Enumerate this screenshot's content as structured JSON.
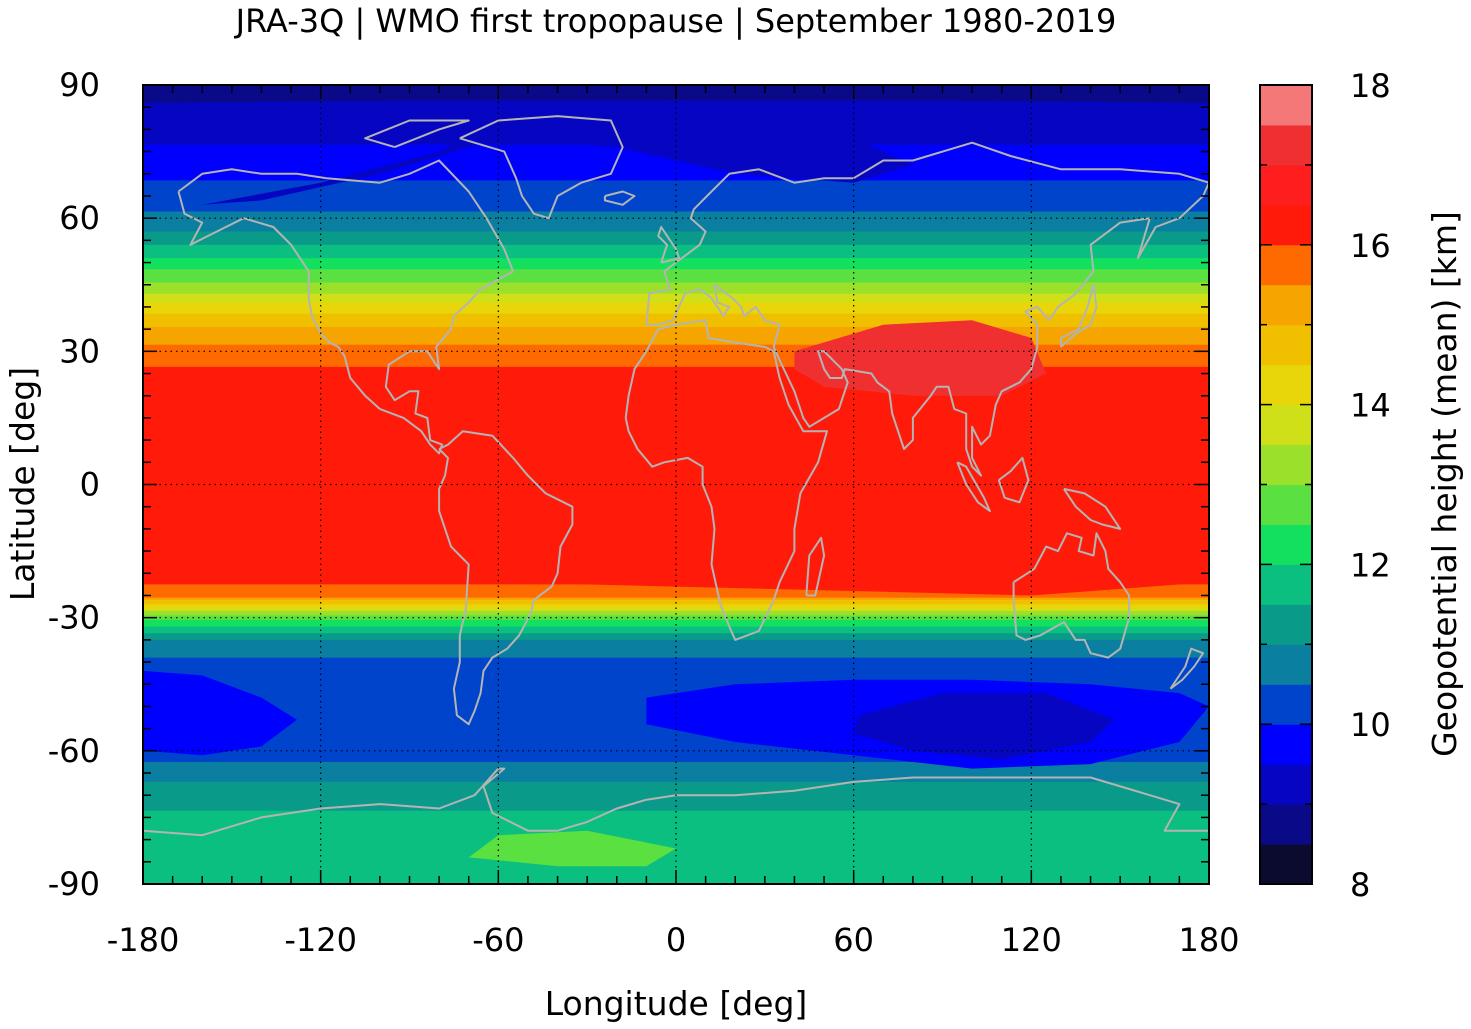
{
  "title": "JRA-3Q | WMO first tropopause | September 1980-2019",
  "chart_data": {
    "type": "heatmap",
    "title": "JRA-3Q | WMO first tropopause | September 1980-2019",
    "xlabel": "Longitude [deg]",
    "ylabel": "Latitude [deg]",
    "xlim": [
      -180,
      180
    ],
    "ylim": [
      -90,
      90
    ],
    "x_ticks": [
      "-180",
      "-120",
      "-60",
      "0",
      "60",
      "120",
      "180"
    ],
    "y_ticks": [
      "90",
      "60",
      "30",
      "0",
      "-30",
      "-60",
      "-90"
    ],
    "x_tick_values": [
      -180,
      -120,
      -60,
      0,
      60,
      120,
      180
    ],
    "y_tick_values": [
      90,
      60,
      30,
      0,
      -30,
      -60,
      -90
    ],
    "grid": true,
    "coastlines": true,
    "colorbar": {
      "label": "Geopotential height (mean) [km]",
      "range": [
        8,
        18
      ],
      "step": 0.5,
      "tick_labels": [
        "18",
        "16",
        "14",
        "12",
        "10",
        "8"
      ],
      "tick_values": [
        18,
        16,
        14,
        12,
        10,
        8
      ],
      "colors": [
        "#0b0b30",
        "#0a0a88",
        "#0606c2",
        "#0000ff",
        "#0044cc",
        "#0a7fa0",
        "#0a9a8a",
        "#0abf80",
        "#14e060",
        "#5ae040",
        "#9be02a",
        "#cfe018",
        "#e8d60a",
        "#f0c000",
        "#f6a500",
        "#ff6a00",
        "#ff1a0a",
        "#ff1e1e",
        "#f03030",
        "#f57878",
        "#ffd0d0"
      ]
    },
    "zonal_profile_lat": [
      90,
      85,
      80,
      75,
      70,
      65,
      60,
      55,
      50,
      45,
      40,
      35,
      30,
      25,
      20,
      10,
      0,
      -10,
      -20,
      -25,
      -27,
      -30,
      -35,
      -40,
      -45,
      -50,
      -55,
      -60,
      -65,
      -70,
      -75,
      -80,
      -85,
      -90
    ],
    "zonal_profile_height_km": [
      8.7,
      9.1,
      9.3,
      9.6,
      9.9,
      10.2,
      10.6,
      11.3,
      12.2,
      13.1,
      14.2,
      15.1,
      15.7,
      16.1,
      16.3,
      16.4,
      16.4,
      16.4,
      16.2,
      15.8,
      14.5,
      12.6,
      11.0,
      10.4,
      10.1,
      10.0,
      10.0,
      10.2,
      10.8,
      11.3,
      11.6,
      11.9,
      11.8,
      11.6
    ]
  }
}
